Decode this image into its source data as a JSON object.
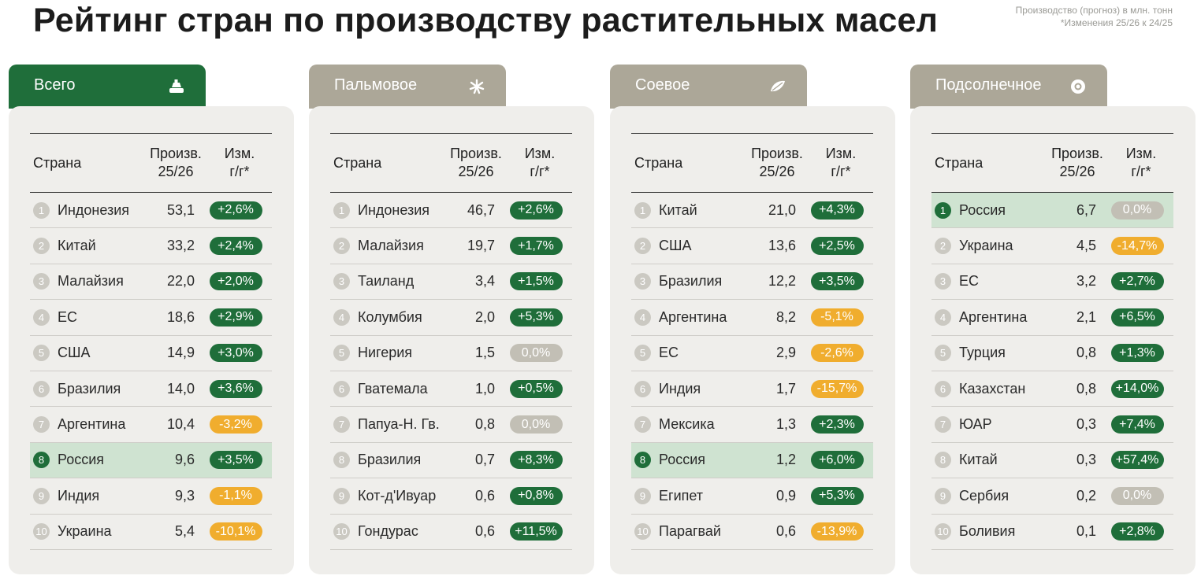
{
  "title": "Рейтинг стран по производству растительных масел",
  "note_line1": "Производство (прогноз) в млн. тонн",
  "note_line2": "*Изменения 25/26 к 24/25",
  "colors": {
    "tab_active": "#1f6e3a",
    "tab_inactive": "#aca798",
    "positive": "#1f6e3a",
    "negative": "#f0ad2e",
    "neutral": "#c2bfb5",
    "highlight_row": "#cfe3d1"
  },
  "panels": [
    {
      "name": "Всего",
      "icon": "oil-bottle-icon",
      "active": true,
      "header": {
        "country": "Страна",
        "prod_line1": "Произв.",
        "prod_line2": "25/26",
        "chg_line1": "Изм.",
        "chg_line2": "г/г*"
      },
      "rows": [
        {
          "rank": "1",
          "country": "Индонезия",
          "prod": "53,1",
          "change": "+2,6%",
          "status": "positive",
          "highlight": false
        },
        {
          "rank": "2",
          "country": "Китай",
          "prod": "33,2",
          "change": "+2,4%",
          "status": "positive",
          "highlight": false
        },
        {
          "rank": "3",
          "country": "Малайзия",
          "prod": "22,0",
          "change": "+2,0%",
          "status": "positive",
          "highlight": false
        },
        {
          "rank": "4",
          "country": "ЕС",
          "prod": "18,6",
          "change": "+2,9%",
          "status": "positive",
          "highlight": false
        },
        {
          "rank": "5",
          "country": "США",
          "prod": "14,9",
          "change": "+3,0%",
          "status": "positive",
          "highlight": false
        },
        {
          "rank": "6",
          "country": "Бразилия",
          "prod": "14,0",
          "change": "+3,6%",
          "status": "positive",
          "highlight": false
        },
        {
          "rank": "7",
          "country": "Аргентина",
          "prod": "10,4",
          "change": "-3,2%",
          "status": "negative",
          "highlight": false
        },
        {
          "rank": "8",
          "country": "Россия",
          "prod": "9,6",
          "change": "+3,5%",
          "status": "positive",
          "highlight": true
        },
        {
          "rank": "9",
          "country": "Индия",
          "prod": "9,3",
          "change": "-1,1%",
          "status": "negative",
          "highlight": false
        },
        {
          "rank": "10",
          "country": "Украина",
          "prod": "5,4",
          "change": "-10,1%",
          "status": "negative",
          "highlight": false
        }
      ]
    },
    {
      "name": "Пальмовое",
      "icon": "palm-icon",
      "active": false,
      "header": {
        "country": "Страна",
        "prod_line1": "Произв.",
        "prod_line2": "25/26",
        "chg_line1": "Изм.",
        "chg_line2": "г/г*"
      },
      "rows": [
        {
          "rank": "1",
          "country": "Индонезия",
          "prod": "46,7",
          "change": "+2,6%",
          "status": "positive",
          "highlight": false
        },
        {
          "rank": "2",
          "country": "Малайзия",
          "prod": "19,7",
          "change": "+1,7%",
          "status": "positive",
          "highlight": false
        },
        {
          "rank": "3",
          "country": "Таиланд",
          "prod": "3,4",
          "change": "+1,5%",
          "status": "positive",
          "highlight": false
        },
        {
          "rank": "4",
          "country": "Колумбия",
          "prod": "2,0",
          "change": "+5,3%",
          "status": "positive",
          "highlight": false
        },
        {
          "rank": "5",
          "country": "Нигерия",
          "prod": "1,5",
          "change": "0,0%",
          "status": "neutral",
          "highlight": false
        },
        {
          "rank": "6",
          "country": "Гватемала",
          "prod": "1,0",
          "change": "+0,5%",
          "status": "positive",
          "highlight": false
        },
        {
          "rank": "7",
          "country": "Папуа-Н. Гв.",
          "prod": "0,8",
          "change": "0,0%",
          "status": "neutral",
          "highlight": false
        },
        {
          "rank": "8",
          "country": "Бразилия",
          "prod": "0,7",
          "change": "+8,3%",
          "status": "positive",
          "highlight": false
        },
        {
          "rank": "9",
          "country": "Кот-д'Ивуар",
          "prod": "0,6",
          "change": "+0,8%",
          "status": "positive",
          "highlight": false
        },
        {
          "rank": "10",
          "country": "Гондурас",
          "prod": "0,6",
          "change": "+11,5%",
          "status": "positive",
          "highlight": false
        }
      ]
    },
    {
      "name": "Соевое",
      "icon": "soybean-icon",
      "active": false,
      "header": {
        "country": "Страна",
        "prod_line1": "Произв.",
        "prod_line2": "25/26",
        "chg_line1": "Изм.",
        "chg_line2": "г/г*"
      },
      "rows": [
        {
          "rank": "1",
          "country": "Китай",
          "prod": "21,0",
          "change": "+4,3%",
          "status": "positive",
          "highlight": false
        },
        {
          "rank": "2",
          "country": "США",
          "prod": "13,6",
          "change": "+2,5%",
          "status": "positive",
          "highlight": false
        },
        {
          "rank": "3",
          "country": "Бразилия",
          "prod": "12,2",
          "change": "+3,5%",
          "status": "positive",
          "highlight": false
        },
        {
          "rank": "4",
          "country": "Аргентина",
          "prod": "8,2",
          "change": "-5,1%",
          "status": "negative",
          "highlight": false
        },
        {
          "rank": "5",
          "country": "ЕС",
          "prod": "2,9",
          "change": "-2,6%",
          "status": "negative",
          "highlight": false
        },
        {
          "rank": "6",
          "country": "Индия",
          "prod": "1,7",
          "change": "-15,7%",
          "status": "negative",
          "highlight": false
        },
        {
          "rank": "7",
          "country": "Мексика",
          "prod": "1,3",
          "change": "+2,3%",
          "status": "positive",
          "highlight": false
        },
        {
          "rank": "8",
          "country": "Россия",
          "prod": "1,2",
          "change": "+6,0%",
          "status": "positive",
          "highlight": true
        },
        {
          "rank": "9",
          "country": "Египет",
          "prod": "0,9",
          "change": "+5,3%",
          "status": "positive",
          "highlight": false
        },
        {
          "rank": "10",
          "country": "Парагвай",
          "prod": "0,6",
          "change": "-13,9%",
          "status": "negative",
          "highlight": false
        }
      ]
    },
    {
      "name": "Подсолнечное",
      "icon": "sunflower-icon",
      "active": false,
      "header": {
        "country": "Страна",
        "prod_line1": "Произв.",
        "prod_line2": "25/26",
        "chg_line1": "Изм.",
        "chg_line2": "г/г*"
      },
      "rows": [
        {
          "rank": "1",
          "country": "Россия",
          "prod": "6,7",
          "change": "0,0%",
          "status": "neutral",
          "highlight": true
        },
        {
          "rank": "2",
          "country": "Украина",
          "prod": "4,5",
          "change": "-14,7%",
          "status": "negative",
          "highlight": false
        },
        {
          "rank": "3",
          "country": "ЕС",
          "prod": "3,2",
          "change": "+2,7%",
          "status": "positive",
          "highlight": false
        },
        {
          "rank": "4",
          "country": "Аргентина",
          "prod": "2,1",
          "change": "+6,5%",
          "status": "positive",
          "highlight": false
        },
        {
          "rank": "5",
          "country": "Турция",
          "prod": "0,8",
          "change": "+1,3%",
          "status": "positive",
          "highlight": false
        },
        {
          "rank": "6",
          "country": "Казахстан",
          "prod": "0,8",
          "change": "+14,0%",
          "status": "positive",
          "highlight": false
        },
        {
          "rank": "7",
          "country": "ЮАР",
          "prod": "0,3",
          "change": "+7,4%",
          "status": "positive",
          "highlight": false
        },
        {
          "rank": "8",
          "country": "Китай",
          "prod": "0,3",
          "change": "+57,4%",
          "status": "positive",
          "highlight": false
        },
        {
          "rank": "9",
          "country": "Сербия",
          "prod": "0,2",
          "change": "0,0%",
          "status": "neutral",
          "highlight": false
        },
        {
          "rank": "10",
          "country": "Боливия",
          "prod": "0,1",
          "change": "+2,8%",
          "status": "positive",
          "highlight": false
        }
      ]
    }
  ]
}
